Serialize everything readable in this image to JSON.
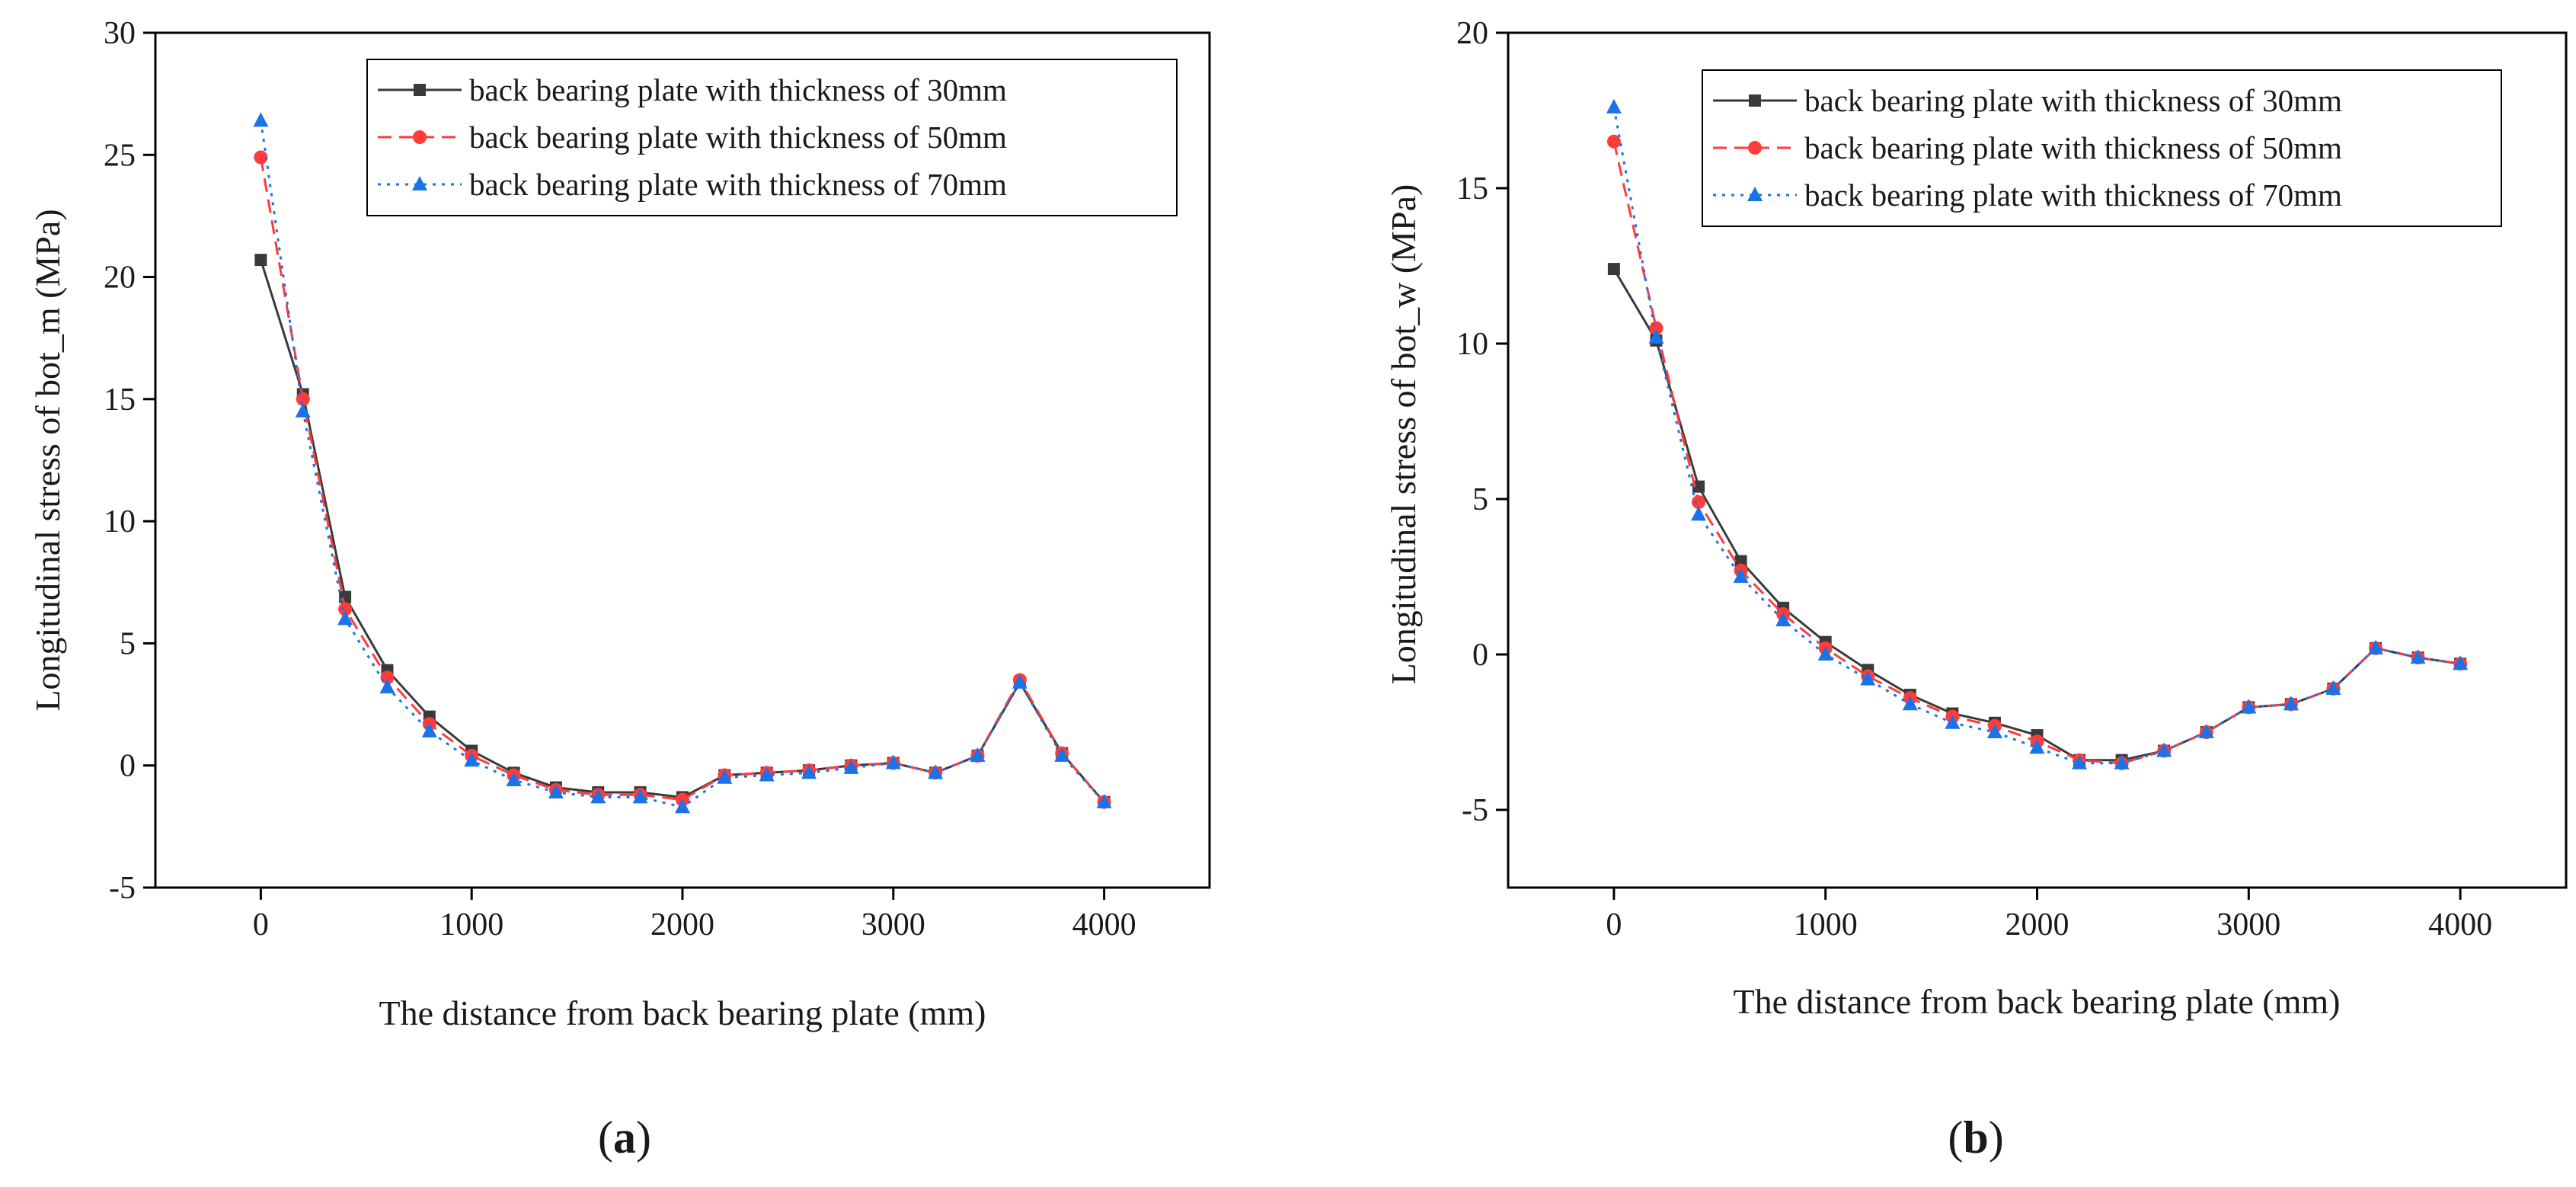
{
  "colors": {
    "series_30mm": "#3a3a3a",
    "series_50mm": "#ff3b3b",
    "series_70mm": "#1a73e8",
    "axis": "#000000",
    "background": "#ffffff"
  },
  "chart_data": [
    {
      "type": "line",
      "panel_label": "(a)",
      "panel_label_parts": {
        "open": "(",
        "letter": "a",
        "close": ")"
      },
      "xlabel": "The distance from back bearing plate (mm)",
      "ylabel": "Longitudinal stress of bot_m (MPa)",
      "xlim": [
        -500,
        4500
      ],
      "ylim": [
        -5,
        30
      ],
      "xticks": [
        0,
        1000,
        2000,
        3000,
        4000
      ],
      "yticks": [
        -5,
        0,
        5,
        10,
        15,
        20,
        25,
        30
      ],
      "legend_position": "top-right",
      "grid": false,
      "x": [
        0,
        200,
        400,
        600,
        800,
        1000,
        1200,
        1400,
        1600,
        1800,
        2000,
        2200,
        2400,
        2600,
        2800,
        3000,
        3200,
        3400,
        3600,
        3800,
        4000
      ],
      "series": [
        {
          "name": "back bearing plate with thickness of 30mm",
          "marker": "square",
          "linestyle": "solid",
          "color_key": "series_30mm",
          "values": [
            20.7,
            15.2,
            6.9,
            3.9,
            2.0,
            0.6,
            -0.3,
            -0.9,
            -1.1,
            -1.1,
            -1.3,
            -0.4,
            -0.3,
            -0.2,
            0.0,
            0.1,
            -0.3,
            0.4,
            3.4,
            0.5,
            -1.5
          ]
        },
        {
          "name": "back bearing plate with thickness of 50mm",
          "marker": "circle",
          "linestyle": "dashed",
          "color_key": "series_50mm",
          "values": [
            24.9,
            15.0,
            6.4,
            3.6,
            1.7,
            0.4,
            -0.4,
            -1.0,
            -1.2,
            -1.2,
            -1.4,
            -0.4,
            -0.3,
            -0.2,
            0.0,
            0.1,
            -0.3,
            0.4,
            3.5,
            0.5,
            -1.5
          ]
        },
        {
          "name": "back bearing plate with thickness of 70mm",
          "marker": "triangle",
          "linestyle": "dotted",
          "color_key": "series_70mm",
          "values": [
            26.4,
            14.5,
            6.0,
            3.2,
            1.4,
            0.2,
            -0.6,
            -1.1,
            -1.3,
            -1.3,
            -1.7,
            -0.5,
            -0.4,
            -0.3,
            -0.1,
            0.1,
            -0.3,
            0.4,
            3.4,
            0.4,
            -1.5
          ]
        }
      ]
    },
    {
      "type": "line",
      "panel_label": "(b)",
      "panel_label_parts": {
        "open": "(",
        "letter": "b",
        "close": ")"
      },
      "xlabel": "The distance from back bearing plate (mm)",
      "ylabel": "Longitudinal stress of bot_w (MPa)",
      "xlim": [
        -500,
        4500
      ],
      "ylim": [
        -7.5,
        20
      ],
      "xticks": [
        0,
        1000,
        2000,
        3000,
        4000
      ],
      "yticks": [
        -5,
        0,
        5,
        10,
        15,
        20
      ],
      "legend_position": "top-right",
      "grid": false,
      "x": [
        0,
        200,
        400,
        600,
        800,
        1000,
        1200,
        1400,
        1600,
        1800,
        2000,
        2200,
        2400,
        2600,
        2800,
        3000,
        3200,
        3400,
        3600,
        3800,
        4000
      ],
      "series": [
        {
          "name": "back bearing plate with thickness of 30mm",
          "marker": "square",
          "linestyle": "solid",
          "color_key": "series_30mm",
          "values": [
            12.4,
            10.1,
            5.4,
            3.0,
            1.5,
            0.4,
            -0.5,
            -1.3,
            -1.9,
            -2.2,
            -2.6,
            -3.4,
            -3.4,
            -3.1,
            -2.5,
            -1.7,
            -1.6,
            -1.1,
            0.2,
            -0.1,
            -0.3
          ]
        },
        {
          "name": "back bearing plate with thickness of 50mm",
          "marker": "circle",
          "linestyle": "dashed",
          "color_key": "series_50mm",
          "values": [
            16.5,
            10.5,
            4.9,
            2.7,
            1.3,
            0.2,
            -0.7,
            -1.4,
            -2.0,
            -2.3,
            -2.8,
            -3.4,
            -3.5,
            -3.1,
            -2.5,
            -1.7,
            -1.6,
            -1.1,
            0.2,
            -0.1,
            -0.3
          ]
        },
        {
          "name": "back bearing plate with thickness of 70mm",
          "marker": "triangle",
          "linestyle": "dotted",
          "color_key": "series_70mm",
          "values": [
            17.6,
            10.2,
            4.5,
            2.5,
            1.1,
            0.0,
            -0.8,
            -1.6,
            -2.2,
            -2.5,
            -3.0,
            -3.5,
            -3.5,
            -3.1,
            -2.5,
            -1.7,
            -1.6,
            -1.1,
            0.2,
            -0.1,
            -0.3
          ]
        }
      ]
    }
  ]
}
